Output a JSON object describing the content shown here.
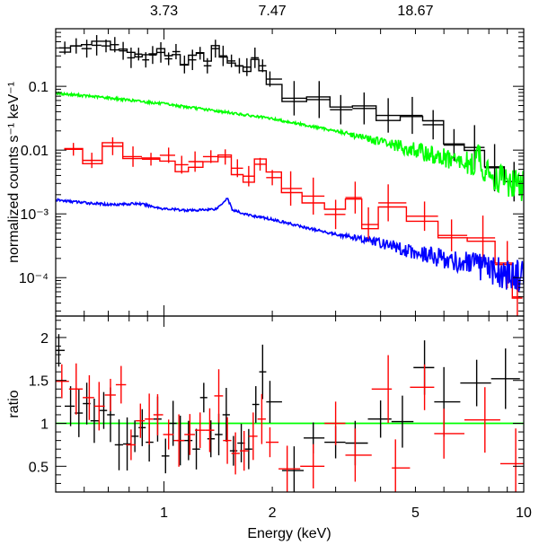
{
  "chart_data": [
    {
      "type": "scatter",
      "panel": "spectrum",
      "title": "",
      "xlabel": "Energy (keV)",
      "ylabel": "normalized counts s⁻¹ keV⁻¹",
      "xscale": "log",
      "yscale": "log",
      "xlim": [
        0.5,
        10
      ],
      "ylim": [
        2.5e-05,
        0.8
      ],
      "x_ticks": [
        "1",
        "2",
        "5",
        "10"
      ],
      "y_ticks": [
        "10⁻⁴",
        "10⁻³",
        "0.01",
        "0.1"
      ],
      "y_tick_values": [
        0.0001,
        0.001,
        0.01,
        0.1
      ],
      "top_axis_ticks": [
        "3.73",
        "7.47",
        "18.67"
      ],
      "top_axis_positions_keV": [
        1.0,
        2.0,
        5.0
      ],
      "grid": false,
      "series": [
        {
          "color": "#000000",
          "style": "crosses+step",
          "points": [
            [
              0.53,
              0.4
            ],
            [
              0.57,
              0.43
            ],
            [
              0.61,
              0.39
            ],
            [
              0.65,
              0.44
            ],
            [
              0.69,
              0.43
            ],
            [
              0.73,
              0.45
            ],
            [
              0.77,
              0.36
            ],
            [
              0.81,
              0.28
            ],
            [
              0.85,
              0.32
            ],
            [
              0.89,
              0.26
            ],
            [
              0.93,
              0.31
            ],
            [
              0.98,
              0.34
            ],
            [
              1.03,
              0.27
            ],
            [
              1.08,
              0.35
            ],
            [
              1.14,
              0.22
            ],
            [
              1.2,
              0.26
            ],
            [
              1.26,
              0.33
            ],
            [
              1.32,
              0.21
            ],
            [
              1.39,
              0.39
            ],
            [
              1.46,
              0.3
            ],
            [
              1.54,
              0.25
            ],
            [
              1.62,
              0.21
            ],
            [
              1.7,
              0.2
            ],
            [
              1.79,
              0.28
            ],
            [
              1.88,
              0.21
            ],
            [
              1.97,
              0.13
            ],
            [
              2.3,
              0.065
            ],
            [
              2.7,
              0.062
            ],
            [
              3.1,
              0.043
            ],
            [
              3.6,
              0.045
            ],
            [
              4.2,
              0.035
            ],
            [
              4.9,
              0.035
            ],
            [
              5.6,
              0.025
            ],
            [
              6.4,
              0.012
            ],
            [
              7.3,
              0.011
            ],
            [
              8.3,
              0.0053
            ],
            [
              9.4,
              0.0032
            ]
          ]
        },
        {
          "color": "#ff0000",
          "style": "crosses+step",
          "points": [
            [
              0.56,
              0.0103
            ],
            [
              0.63,
              0.0069
            ],
            [
              0.72,
              0.0115
            ],
            [
              0.82,
              0.0079
            ],
            [
              0.92,
              0.0072
            ],
            [
              1.03,
              0.0083
            ],
            [
              1.12,
              0.0059
            ],
            [
              1.22,
              0.0066
            ],
            [
              1.35,
              0.0079
            ],
            [
              1.48,
              0.0078
            ],
            [
              1.6,
              0.0052
            ],
            [
              1.72,
              0.0039
            ],
            [
              1.85,
              0.006
            ],
            [
              2.0,
              0.0037
            ],
            [
              2.25,
              0.0025
            ],
            [
              2.6,
              0.0019
            ],
            [
              3.0,
              0.00098
            ],
            [
              3.4,
              0.0018
            ],
            [
              3.7,
              0.00068
            ],
            [
              4.2,
              0.00149
            ],
            [
              5.3,
              0.00092
            ],
            [
              6.3,
              0.00046
            ],
            [
              7.7,
              0.00042
            ],
            [
              9.0,
              0.00016
            ],
            [
              9.6,
              5e-05
            ]
          ]
        },
        {
          "color": "#00ff00",
          "style": "dense-line",
          "points": [
            [
              0.5,
              0.078
            ],
            [
              0.7,
              0.066
            ],
            [
              1.0,
              0.053
            ],
            [
              1.5,
              0.039
            ],
            [
              2.0,
              0.031
            ],
            [
              3.0,
              0.02
            ],
            [
              4.0,
              0.0135
            ],
            [
              5.0,
              0.0098
            ],
            [
              6.0,
              0.0074
            ],
            [
              7.0,
              0.006
            ],
            [
              7.3,
              0.0058
            ],
            [
              7.5,
              0.0098
            ],
            [
              7.7,
              0.005
            ],
            [
              8.0,
              0.0042
            ],
            [
              9.0,
              0.0032
            ],
            [
              10.0,
              0.0027
            ]
          ]
        },
        {
          "color": "#0000ff",
          "style": "dense-line",
          "points": [
            [
              0.5,
              0.00165
            ],
            [
              0.6,
              0.0015
            ],
            [
              0.7,
              0.0014
            ],
            [
              0.85,
              0.00145
            ],
            [
              1.0,
              0.0012
            ],
            [
              1.2,
              0.00113
            ],
            [
              1.4,
              0.0012
            ],
            [
              1.5,
              0.00178
            ],
            [
              1.55,
              0.00115
            ],
            [
              1.7,
              0.00097
            ],
            [
              2.0,
              0.00082
            ],
            [
              2.5,
              0.0006
            ],
            [
              3.0,
              0.00048
            ],
            [
              4.0,
              0.00035
            ],
            [
              5.0,
              0.00025
            ],
            [
              6.0,
              0.0002
            ],
            [
              7.0,
              0.000162
            ],
            [
              8.0,
              0.000135
            ],
            [
              9.0,
              0.000112
            ],
            [
              10.0,
              0.000105
            ]
          ]
        }
      ]
    },
    {
      "type": "scatter",
      "panel": "ratio",
      "title": "",
      "xlabel": "Energy (keV)",
      "ylabel": "ratio",
      "xscale": "log",
      "yscale": "linear",
      "xlim": [
        0.5,
        10
      ],
      "ylim": [
        0.2,
        2.25
      ],
      "x_ticks": [
        "1",
        "2",
        "5",
        "10"
      ],
      "y_ticks": [
        "0.5",
        "1",
        "1.5",
        "2"
      ],
      "reference_line": 1,
      "grid": false,
      "series": [
        {
          "color": "#000000",
          "points": [
            [
              0.51,
              1.85
            ],
            [
              0.55,
              1.2
            ],
            [
              0.58,
              1.12
            ],
            [
              0.61,
              1.23
            ],
            [
              0.64,
              1.03
            ],
            [
              0.68,
              1.15
            ],
            [
              0.71,
              1.1
            ],
            [
              0.75,
              0.75
            ],
            [
              0.79,
              0.76
            ],
            [
              0.83,
              0.85
            ],
            [
              0.87,
              0.95
            ],
            [
              0.91,
              0.78
            ],
            [
              0.96,
              1.05
            ],
            [
              1.01,
              0.62
            ],
            [
              1.06,
              1.0
            ],
            [
              1.11,
              0.8
            ],
            [
              1.17,
              0.8
            ],
            [
              1.23,
              0.7
            ],
            [
              1.29,
              1.3
            ],
            [
              1.35,
              0.82
            ],
            [
              1.42,
              0.87
            ],
            [
              1.49,
              1.1
            ],
            [
              1.56,
              0.68
            ],
            [
              1.64,
              0.77
            ],
            [
              1.72,
              0.7
            ],
            [
              1.8,
              1.22
            ],
            [
              1.88,
              1.6
            ],
            [
              1.97,
              1.25
            ],
            [
              2.3,
              0.45
            ],
            [
              2.6,
              0.83
            ],
            [
              3.0,
              0.78
            ],
            [
              3.4,
              0.77
            ],
            [
              4.0,
              1.05
            ],
            [
              4.6,
              1.02
            ],
            [
              5.3,
              1.65
            ],
            [
              6.0,
              1.25
            ],
            [
              7.4,
              1.47
            ],
            [
              8.9,
              1.52
            ]
          ]
        },
        {
          "color": "#ff0000",
          "points": [
            [
              0.52,
              1.49
            ],
            [
              0.57,
              1.4
            ],
            [
              0.62,
              1.3
            ],
            [
              0.66,
              1.2
            ],
            [
              0.71,
              1.33
            ],
            [
              0.76,
              1.45
            ],
            [
              0.81,
              0.75
            ],
            [
              0.86,
              1.03
            ],
            [
              0.91,
              1.05
            ],
            [
              0.96,
              1.1
            ],
            [
              1.03,
              0.87
            ],
            [
              1.1,
              0.8
            ],
            [
              1.18,
              0.87
            ],
            [
              1.26,
              0.92
            ],
            [
              1.34,
              0.92
            ],
            [
              1.42,
              1.32
            ],
            [
              1.5,
              0.8
            ],
            [
              1.58,
              0.65
            ],
            [
              1.67,
              0.68
            ],
            [
              1.77,
              0.85
            ],
            [
              1.87,
              1.05
            ],
            [
              1.97,
              0.78
            ],
            [
              2.2,
              0.47
            ],
            [
              2.6,
              0.5
            ],
            [
              3.0,
              1.0
            ],
            [
              3.4,
              0.63
            ],
            [
              4.2,
              1.4
            ],
            [
              4.4,
              0.48
            ],
            [
              5.3,
              1.42
            ],
            [
              6.0,
              0.88
            ],
            [
              7.8,
              1.04
            ],
            [
              9.5,
              0.53
            ]
          ]
        }
      ]
    }
  ]
}
